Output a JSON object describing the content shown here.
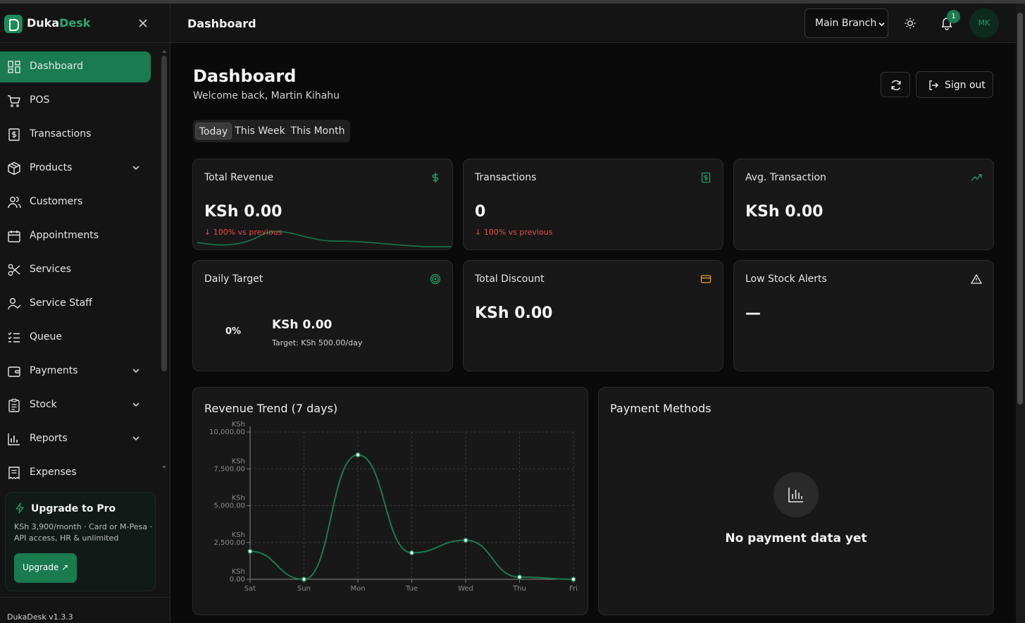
{
  "brand": {
    "name_a": "Duka",
    "name_b": "Desk"
  },
  "sidebar": {
    "items": [
      {
        "label": "Dashboard",
        "icon": "dashboard-icon",
        "active": true,
        "has_chevron": false
      },
      {
        "label": "POS",
        "icon": "cart-icon",
        "active": false,
        "has_chevron": false
      },
      {
        "label": "Transactions",
        "icon": "receipt-dollar-icon",
        "active": false,
        "has_chevron": false
      },
      {
        "label": "Products",
        "icon": "package-icon",
        "active": false,
        "has_chevron": true
      },
      {
        "label": "Customers",
        "icon": "users-icon",
        "active": false,
        "has_chevron": false
      },
      {
        "label": "Appointments",
        "icon": "calendar-icon",
        "active": false,
        "has_chevron": false
      },
      {
        "label": "Services",
        "icon": "scissors-icon",
        "active": false,
        "has_chevron": false
      },
      {
        "label": "Service Staff",
        "icon": "user-check-icon",
        "active": false,
        "has_chevron": false
      },
      {
        "label": "Queue",
        "icon": "list-checks-icon",
        "active": false,
        "has_chevron": false
      },
      {
        "label": "Payments",
        "icon": "wallet-icon",
        "active": false,
        "has_chevron": true
      },
      {
        "label": "Stock",
        "icon": "clipboard-icon",
        "active": false,
        "has_chevron": true
      },
      {
        "label": "Reports",
        "icon": "bar-chart-icon",
        "active": false,
        "has_chevron": true
      },
      {
        "label": "Expenses",
        "icon": "receipt-icon",
        "active": false,
        "has_chevron": false
      }
    ],
    "upgrade": {
      "title": "Upgrade to Pro",
      "description": "KSh 3,900/month · Card or M-Pesa · API access, HR & unlimited",
      "button": "Upgrade ↗"
    },
    "version": "DukaDesk v1.3.3"
  },
  "topbar": {
    "title": "Dashboard",
    "branch": "Main Branch",
    "notification_count": "1",
    "avatar_initials": "MK"
  },
  "header": {
    "title": "Dashboard",
    "welcome": "Welcome back, Martin Kihahu",
    "signout": "Sign out"
  },
  "range_tabs": [
    "Today",
    "This Week",
    "This Month"
  ],
  "active_range": "Today",
  "cards": {
    "total_revenue": {
      "title": "Total Revenue",
      "value": "KSh 0.00",
      "delta": "↓ 100% vs previous",
      "icon": "dollar-icon"
    },
    "transactions": {
      "title": "Transactions",
      "value": "0",
      "delta": "↓ 100% vs previous",
      "icon": "receipt-dollar-icon"
    },
    "avg_transaction": {
      "title": "Avg. Transaction",
      "value": "KSh 0.00",
      "icon": "trending-up-icon"
    },
    "daily_target": {
      "title": "Daily Target",
      "percent": "0%",
      "value": "KSh 0.00",
      "target": "Target: KSh 500.00/day",
      "icon": "target-icon"
    },
    "total_discount": {
      "title": "Total Discount",
      "value": "KSh 0.00",
      "icon": "credit-card-icon"
    },
    "low_stock": {
      "title": "Low Stock Alerts",
      "value": "—",
      "icon": "alert-triangle-icon"
    }
  },
  "colors": {
    "accent": "#1a7a50",
    "accent_line": "#1f9e67",
    "negative": "#e84b4b",
    "discount_icon": "#e0a030"
  },
  "revenue_trend": {
    "title": "Revenue Trend (7 days)"
  },
  "payment_methods": {
    "title": "Payment Methods",
    "empty": "No payment data yet"
  },
  "chart_data": {
    "type": "line",
    "categories": [
      "Sat",
      "Sun",
      "Mon",
      "Tue",
      "Wed",
      "Thu",
      "Fri"
    ],
    "values": [
      1900,
      0,
      8450,
      1800,
      2650,
      150,
      0
    ],
    "ylim": [
      0,
      10000
    ],
    "yticks": [
      0,
      2500,
      5000,
      7500,
      10000
    ],
    "ytick_labels": [
      [
        "KSh",
        "0.00"
      ],
      [
        "KSh",
        "2,500.00"
      ],
      [
        "KSh",
        "5,000.00"
      ],
      [
        "KSh",
        "7,500.00"
      ],
      [
        "KSh",
        "10,000.00"
      ]
    ],
    "grid": true
  }
}
